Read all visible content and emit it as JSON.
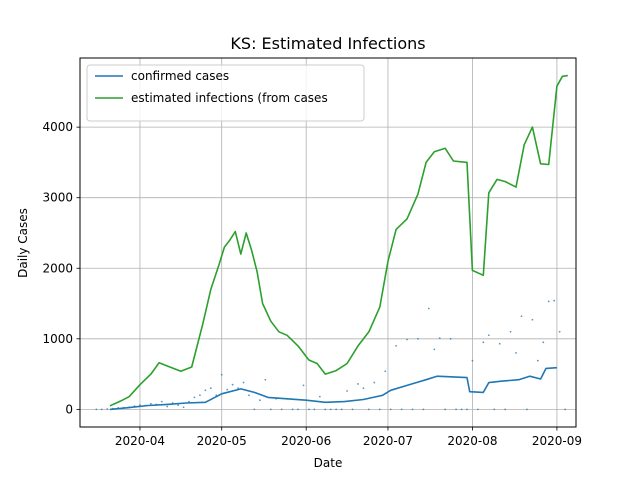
{
  "chart_data": {
    "type": "line",
    "title": "KS: Estimated Infections",
    "xlabel": "Date",
    "ylabel": "Daily Cases",
    "x_ticks": [
      "2020-04",
      "2020-05",
      "2020-06",
      "2020-07",
      "2020-08",
      "2020-09"
    ],
    "y_ticks": [
      0,
      1000,
      2000,
      3000,
      4000
    ],
    "xlim": [
      "2020-03-10",
      "2020-09-08"
    ],
    "ylim": [
      -250,
      4980
    ],
    "grid": true,
    "legend_position": "top-left",
    "colors": {
      "confirmed": "#1f77b4",
      "estimated": "#2ca02c",
      "scatter": "#1f77b4"
    },
    "series": [
      {
        "name": "confirmed cases",
        "color": "#1f77b4",
        "points": [
          [
            "2020-03-21",
            0
          ],
          [
            "2020-03-28",
            25
          ],
          [
            "2020-04-04",
            55
          ],
          [
            "2020-04-11",
            70
          ],
          [
            "2020-04-18",
            90
          ],
          [
            "2020-04-25",
            100
          ],
          [
            "2020-05-01",
            220
          ],
          [
            "2020-05-08",
            290
          ],
          [
            "2020-05-13",
            240
          ],
          [
            "2020-05-18",
            170
          ],
          [
            "2020-05-25",
            150
          ],
          [
            "2020-06-01",
            130
          ],
          [
            "2020-06-08",
            100
          ],
          [
            "2020-06-15",
            110
          ],
          [
            "2020-06-22",
            140
          ],
          [
            "2020-06-29",
            200
          ],
          [
            "2020-07-02",
            270
          ],
          [
            "2020-07-08",
            340
          ],
          [
            "2020-07-15",
            420
          ],
          [
            "2020-07-19",
            470
          ],
          [
            "2020-07-25",
            460
          ],
          [
            "2020-07-30",
            450
          ],
          [
            "2020-07-31",
            250
          ],
          [
            "2020-08-05",
            240
          ],
          [
            "2020-08-07",
            380
          ],
          [
            "2020-08-12",
            400
          ],
          [
            "2020-08-18",
            420
          ],
          [
            "2020-08-22",
            470
          ],
          [
            "2020-08-26",
            430
          ],
          [
            "2020-08-28",
            580
          ],
          [
            "2020-09-01",
            590
          ]
        ]
      },
      {
        "name": "estimated infections (from cases",
        "color": "#2ca02c",
        "points": [
          [
            "2020-03-21",
            50
          ],
          [
            "2020-03-25",
            120
          ],
          [
            "2020-03-28",
            180
          ],
          [
            "2020-04-01",
            350
          ],
          [
            "2020-04-05",
            500
          ],
          [
            "2020-04-08",
            660
          ],
          [
            "2020-04-12",
            600
          ],
          [
            "2020-04-16",
            540
          ],
          [
            "2020-04-20",
            600
          ],
          [
            "2020-04-24",
            1200
          ],
          [
            "2020-04-27",
            1700
          ],
          [
            "2020-04-30",
            2050
          ],
          [
            "2020-05-02",
            2300
          ],
          [
            "2020-05-04",
            2400
          ],
          [
            "2020-05-06",
            2520
          ],
          [
            "2020-05-08",
            2200
          ],
          [
            "2020-05-10",
            2500
          ],
          [
            "2020-05-12",
            2250
          ],
          [
            "2020-05-14",
            1950
          ],
          [
            "2020-05-16",
            1500
          ],
          [
            "2020-05-19",
            1250
          ],
          [
            "2020-05-22",
            1100
          ],
          [
            "2020-05-25",
            1050
          ],
          [
            "2020-05-29",
            900
          ],
          [
            "2020-06-02",
            700
          ],
          [
            "2020-06-05",
            650
          ],
          [
            "2020-06-08",
            500
          ],
          [
            "2020-06-12",
            550
          ],
          [
            "2020-06-16",
            650
          ],
          [
            "2020-06-20",
            900
          ],
          [
            "2020-06-24",
            1100
          ],
          [
            "2020-06-28",
            1450
          ],
          [
            "2020-07-01",
            2100
          ],
          [
            "2020-07-04",
            2550
          ],
          [
            "2020-07-08",
            2700
          ],
          [
            "2020-07-12",
            3050
          ],
          [
            "2020-07-15",
            3500
          ],
          [
            "2020-07-18",
            3650
          ],
          [
            "2020-07-22",
            3700
          ],
          [
            "2020-07-25",
            3520
          ],
          [
            "2020-07-30",
            3500
          ],
          [
            "2020-08-01",
            1970
          ],
          [
            "2020-08-05",
            1900
          ],
          [
            "2020-08-07",
            3070
          ],
          [
            "2020-08-10",
            3260
          ],
          [
            "2020-08-13",
            3230
          ],
          [
            "2020-08-17",
            3150
          ],
          [
            "2020-08-20",
            3750
          ],
          [
            "2020-08-23",
            4000
          ],
          [
            "2020-08-26",
            3480
          ],
          [
            "2020-08-29",
            3470
          ],
          [
            "2020-09-01",
            4580
          ],
          [
            "2020-09-03",
            4720
          ],
          [
            "2020-09-05",
            4730
          ]
        ]
      },
      {
        "type": "scatter",
        "color": "#1f77b4",
        "points": [
          [
            "2020-03-16",
            0
          ],
          [
            "2020-03-18",
            0
          ],
          [
            "2020-03-20",
            5
          ],
          [
            "2020-03-22",
            10
          ],
          [
            "2020-03-24",
            20
          ],
          [
            "2020-03-26",
            25
          ],
          [
            "2020-03-28",
            30
          ],
          [
            "2020-03-30",
            45
          ],
          [
            "2020-04-01",
            60
          ],
          [
            "2020-04-03",
            55
          ],
          [
            "2020-04-05",
            80
          ],
          [
            "2020-04-07",
            70
          ],
          [
            "2020-04-09",
            110
          ],
          [
            "2020-04-11",
            40
          ],
          [
            "2020-04-13",
            90
          ],
          [
            "2020-04-15",
            60
          ],
          [
            "2020-04-17",
            30
          ],
          [
            "2020-04-19",
            110
          ],
          [
            "2020-04-21",
            170
          ],
          [
            "2020-04-23",
            200
          ],
          [
            "2020-04-25",
            270
          ],
          [
            "2020-04-27",
            300
          ],
          [
            "2020-04-29",
            200
          ],
          [
            "2020-05-01",
            490
          ],
          [
            "2020-05-03",
            280
          ],
          [
            "2020-05-05",
            350
          ],
          [
            "2020-05-07",
            300
          ],
          [
            "2020-05-09",
            380
          ],
          [
            "2020-05-11",
            200
          ],
          [
            "2020-05-13",
            0
          ],
          [
            "2020-05-15",
            130
          ],
          [
            "2020-05-17",
            420
          ],
          [
            "2020-05-19",
            0
          ],
          [
            "2020-05-21",
            150
          ],
          [
            "2020-05-23",
            0
          ],
          [
            "2020-05-25",
            150
          ],
          [
            "2020-05-27",
            0
          ],
          [
            "2020-05-29",
            0
          ],
          [
            "2020-05-31",
            340
          ],
          [
            "2020-06-02",
            0
          ],
          [
            "2020-06-04",
            0
          ],
          [
            "2020-06-06",
            180
          ],
          [
            "2020-06-08",
            0
          ],
          [
            "2020-06-10",
            0
          ],
          [
            "2020-06-12",
            0
          ],
          [
            "2020-06-14",
            0
          ],
          [
            "2020-06-16",
            260
          ],
          [
            "2020-06-18",
            0
          ],
          [
            "2020-06-20",
            360
          ],
          [
            "2020-06-22",
            300
          ],
          [
            "2020-06-24",
            0
          ],
          [
            "2020-06-26",
            380
          ],
          [
            "2020-06-28",
            0
          ],
          [
            "2020-06-30",
            540
          ],
          [
            "2020-07-02",
            0
          ],
          [
            "2020-07-04",
            900
          ],
          [
            "2020-07-06",
            0
          ],
          [
            "2020-07-08",
            990
          ],
          [
            "2020-07-10",
            0
          ],
          [
            "2020-07-12",
            1000
          ],
          [
            "2020-07-14",
            0
          ],
          [
            "2020-07-16",
            1430
          ],
          [
            "2020-07-18",
            850
          ],
          [
            "2020-07-20",
            1010
          ],
          [
            "2020-07-22",
            0
          ],
          [
            "2020-07-24",
            1000
          ],
          [
            "2020-07-26",
            0
          ],
          [
            "2020-07-28",
            0
          ],
          [
            "2020-07-30",
            0
          ],
          [
            "2020-08-01",
            690
          ],
          [
            "2020-08-03",
            0
          ],
          [
            "2020-08-05",
            950
          ],
          [
            "2020-08-07",
            1050
          ],
          [
            "2020-08-09",
            0
          ],
          [
            "2020-08-11",
            930
          ],
          [
            "2020-08-13",
            0
          ],
          [
            "2020-08-15",
            1100
          ],
          [
            "2020-08-17",
            800
          ],
          [
            "2020-08-19",
            1320
          ],
          [
            "2020-08-21",
            0
          ],
          [
            "2020-08-23",
            1270
          ],
          [
            "2020-08-25",
            690
          ],
          [
            "2020-08-27",
            950
          ],
          [
            "2020-08-29",
            1530
          ],
          [
            "2020-08-31",
            1540
          ],
          [
            "2020-09-02",
            1100
          ],
          [
            "2020-09-04",
            0
          ]
        ]
      }
    ]
  }
}
